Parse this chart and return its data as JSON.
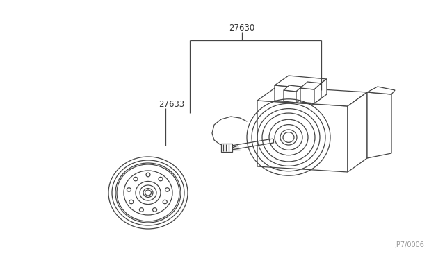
{
  "bg_color": "#ffffff",
  "line_color": "#444444",
  "label_27630": "27630",
  "label_27633": "27633",
  "ref_code": "JP7/0006",
  "fig_width": 6.4,
  "fig_height": 3.72,
  "dpi": 100
}
